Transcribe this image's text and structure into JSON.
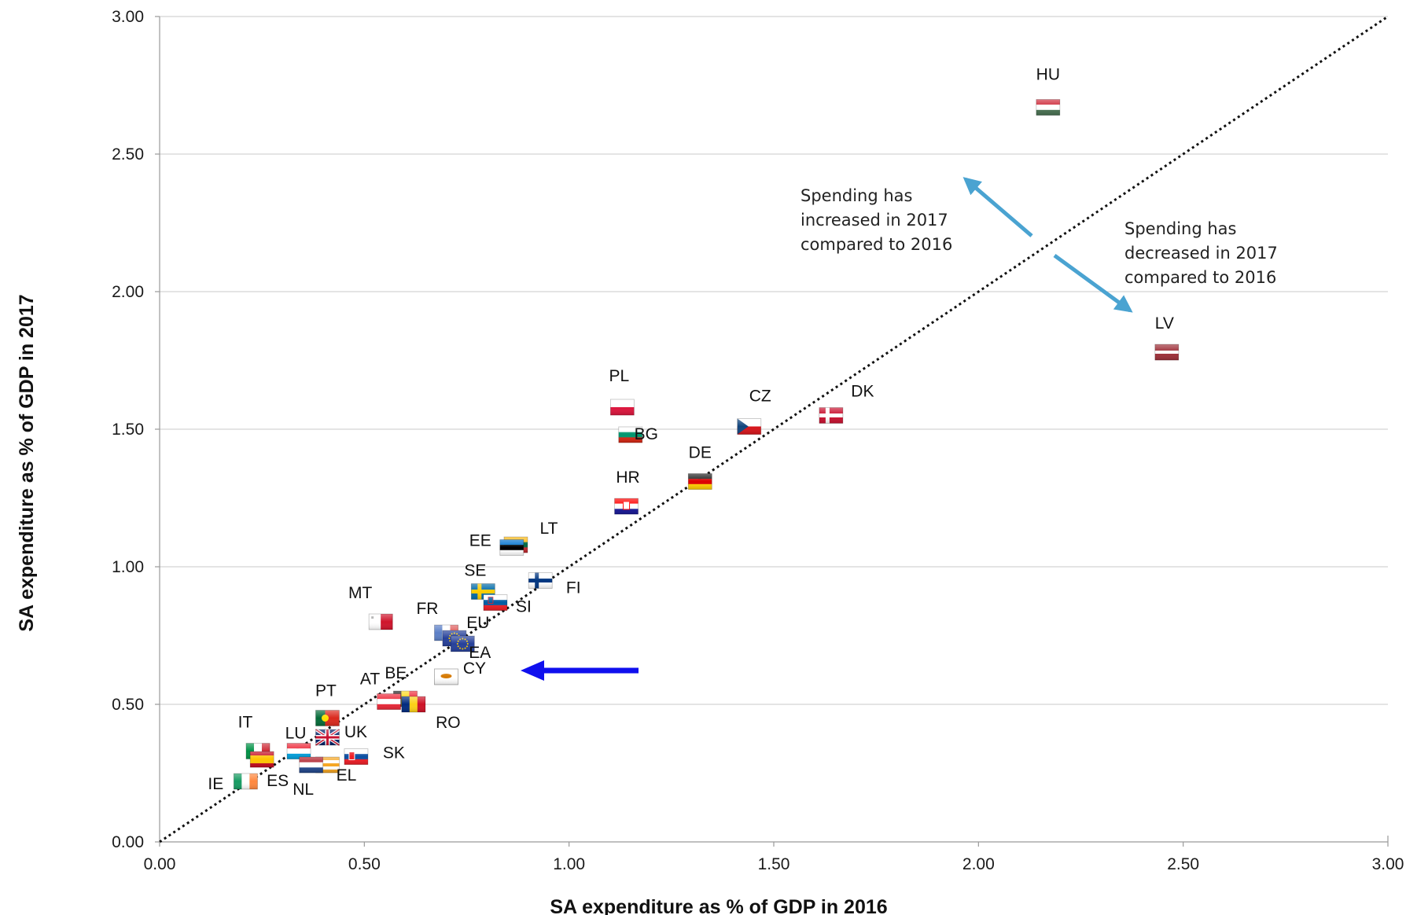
{
  "chart_data": {
    "type": "scatter",
    "title": "",
    "xlabel": "SA expenditure as % of GDP in 2016",
    "ylabel": "SA expenditure as % of GDP in 2017",
    "xlim": [
      0,
      3
    ],
    "ylim": [
      0,
      3
    ],
    "xticks": [
      "0.00",
      "0.50",
      "1.00",
      "1.50",
      "2.00",
      "2.50",
      "3.00"
    ],
    "yticks": [
      "0.00",
      "0.50",
      "1.00",
      "1.50",
      "2.00",
      "2.50",
      "3.00"
    ],
    "grid": "horizontal",
    "reference_line": "y = x",
    "points": [
      {
        "label": "HU",
        "x": 2.17,
        "y": 2.67,
        "flag": "hungary"
      },
      {
        "label": "LV",
        "x": 2.46,
        "y": 1.78,
        "flag": "latvia"
      },
      {
        "label": "DK",
        "x": 1.64,
        "y": 1.55,
        "flag": "denmark"
      },
      {
        "label": "CZ",
        "x": 1.44,
        "y": 1.51,
        "flag": "czechia"
      },
      {
        "label": "PL",
        "x": 1.13,
        "y": 1.58,
        "flag": "poland"
      },
      {
        "label": "BG",
        "x": 1.15,
        "y": 1.48,
        "flag": "bulgaria"
      },
      {
        "label": "DE",
        "x": 1.32,
        "y": 1.31,
        "flag": "germany"
      },
      {
        "label": "HR",
        "x": 1.14,
        "y": 1.22,
        "flag": "croatia"
      },
      {
        "label": "LT",
        "x": 0.87,
        "y": 1.08,
        "flag": "lithuania"
      },
      {
        "label": "EE",
        "x": 0.86,
        "y": 1.07,
        "flag": "estonia"
      },
      {
        "label": "FI",
        "x": 0.93,
        "y": 0.95,
        "flag": "finland"
      },
      {
        "label": "SE",
        "x": 0.79,
        "y": 0.91,
        "flag": "sweden"
      },
      {
        "label": "SI",
        "x": 0.82,
        "y": 0.87,
        "flag": "slovenia"
      },
      {
        "label": "MT",
        "x": 0.54,
        "y": 0.8,
        "flag": "malta"
      },
      {
        "label": "FR",
        "x": 0.7,
        "y": 0.76,
        "flag": "france"
      },
      {
        "label": "EU",
        "x": 0.72,
        "y": 0.74,
        "flag": "eu"
      },
      {
        "label": "EA",
        "x": 0.74,
        "y": 0.72,
        "flag": "eu"
      },
      {
        "label": "CY",
        "x": 0.7,
        "y": 0.6,
        "flag": "cyprus"
      },
      {
        "label": "BE",
        "x": 0.6,
        "y": 0.52,
        "flag": "belgium"
      },
      {
        "label": "AT",
        "x": 0.56,
        "y": 0.51,
        "flag": "austria"
      },
      {
        "label": "RO",
        "x": 0.62,
        "y": 0.5,
        "flag": "romania"
      },
      {
        "label": "PT",
        "x": 0.41,
        "y": 0.45,
        "flag": "portugal"
      },
      {
        "label": "UK",
        "x": 0.41,
        "y": 0.38,
        "flag": "uk"
      },
      {
        "label": "LU",
        "x": 0.34,
        "y": 0.33,
        "flag": "luxembourg"
      },
      {
        "label": "IT",
        "x": 0.24,
        "y": 0.33,
        "flag": "italy"
      },
      {
        "label": "ES",
        "x": 0.25,
        "y": 0.3,
        "flag": "spain"
      },
      {
        "label": "SK",
        "x": 0.48,
        "y": 0.31,
        "flag": "slovakia"
      },
      {
        "label": "EL",
        "x": 0.41,
        "y": 0.28,
        "flag": "greece"
      },
      {
        "label": "NL",
        "x": 0.37,
        "y": 0.28,
        "flag": "netherlands"
      },
      {
        "label": "IE",
        "x": 0.21,
        "y": 0.22,
        "flag": "ireland"
      }
    ],
    "annotations": {
      "increase": [
        "Spending has",
        "increased in 2017",
        "compared to 2016"
      ],
      "decrease": [
        "Spending has",
        "decreased in 2017",
        "compared to 2016"
      ]
    },
    "arrow_colors": {
      "diagonal": "#4aa3d1",
      "highlight": "#1010ee"
    }
  }
}
